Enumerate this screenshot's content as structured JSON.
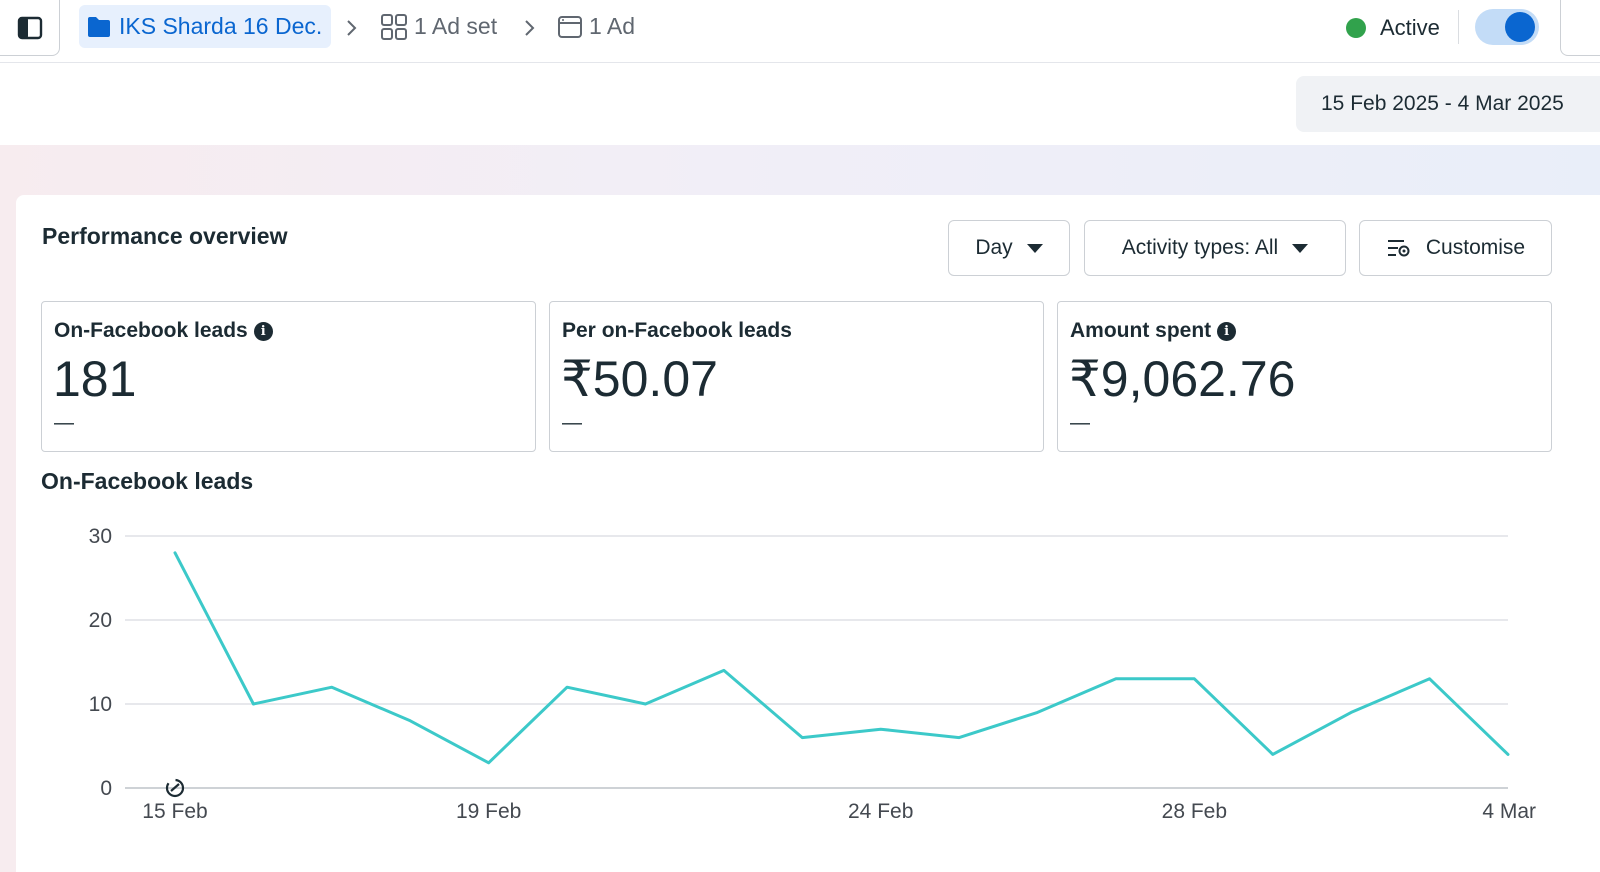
{
  "breadcrumb": {
    "campaign": "IKS Sharda 16 Dec.",
    "adset": "1 Ad set",
    "ad": "1 Ad"
  },
  "status": {
    "label": "Active",
    "toggle_on": true,
    "dot_color": "#31a24c",
    "accent_color": "#0a66d0"
  },
  "date_range": "15 Feb 2025 - 4 Mar 2025",
  "overview": {
    "title": "Performance overview",
    "granularity": "Day",
    "activity_filter": "Activity types: All",
    "customise_label": "Customise"
  },
  "metrics": [
    {
      "label": "On-Facebook leads",
      "value": "181",
      "delta": "—",
      "info": true
    },
    {
      "label": "Per on-Facebook leads",
      "value": "₹50.07",
      "delta": "—",
      "info": false
    },
    {
      "label": "Amount spent",
      "value": "₹9,062.76",
      "delta": "—",
      "info": true
    }
  ],
  "chart_title": "On-Facebook leads",
  "chart_data": {
    "type": "line",
    "series": [
      {
        "values": [
          28,
          10,
          12,
          8,
          3,
          12,
          10,
          14,
          6,
          7,
          6,
          9,
          13,
          13,
          4,
          9,
          13,
          4
        ]
      }
    ],
    "x": [
      "15 Feb",
      "16 Feb",
      "17 Feb",
      "18 Feb",
      "19 Feb",
      "20 Feb",
      "21 Feb",
      "22 Feb",
      "23 Feb",
      "24 Feb",
      "25 Feb",
      "26 Feb",
      "27 Feb",
      "28 Feb",
      "1 Mar",
      "2 Mar",
      "3 Mar",
      "4 Mar"
    ],
    "x_tick_labels": [
      "15 Feb",
      "19 Feb",
      "24 Feb",
      "28 Feb",
      "4 Mar"
    ],
    "y_ticks": [
      0,
      10,
      20,
      30
    ],
    "ylim": [
      0,
      30
    ],
    "grid": true,
    "line_color": "#3cc9c9"
  }
}
